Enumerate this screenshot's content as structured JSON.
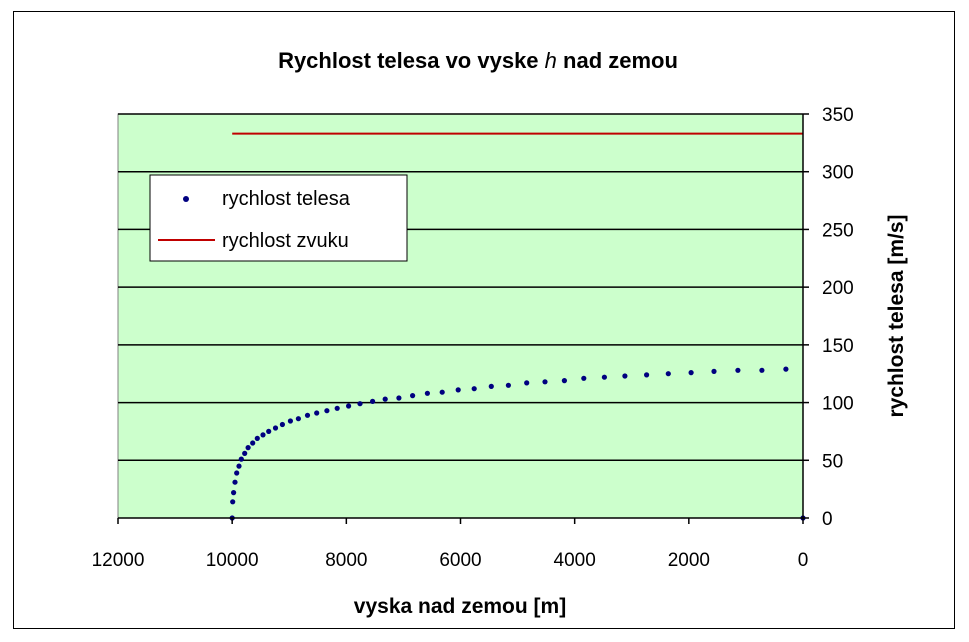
{
  "chart_data": {
    "type": "scatter",
    "title": "Rychlost telesa vo vyske h nad zemou",
    "title_parts": [
      "Rychlost telesa vo vyske ",
      "h",
      " nad zemou"
    ],
    "xlabel": "vyska nad zemou [m]",
    "ylabel": "rychlost telesa [m/s]",
    "xlim": [
      0,
      12000
    ],
    "x_reversed": true,
    "ylim": [
      0,
      350
    ],
    "x_ticks": [
      "12000",
      "10000",
      "8000",
      "6000",
      "4000",
      "2000",
      "0"
    ],
    "y_ticks": [
      "0",
      "50",
      "100",
      "150",
      "200",
      "250",
      "300",
      "350"
    ],
    "y_axis_position": "right",
    "grid": "horizontal",
    "legend_position": "top-left",
    "plot_background": "#ccffcc",
    "series": [
      {
        "name": "rychlost telesa",
        "style": "markers",
        "color": "#000080",
        "points": [
          [
            10000,
            0
          ],
          [
            9990,
            14
          ],
          [
            9975,
            22
          ],
          [
            9950,
            31
          ],
          [
            9920,
            39
          ],
          [
            9880,
            45
          ],
          [
            9840,
            51
          ],
          [
            9780,
            56
          ],
          [
            9720,
            61
          ],
          [
            9640,
            65
          ],
          [
            9560,
            69
          ],
          [
            9460,
            72
          ],
          [
            9360,
            75
          ],
          [
            9240,
            78
          ],
          [
            9120,
            81
          ],
          [
            8980,
            84
          ],
          [
            8840,
            86
          ],
          [
            8680,
            89
          ],
          [
            8520,
            91
          ],
          [
            8340,
            93
          ],
          [
            8160,
            95
          ],
          [
            7960,
            97
          ],
          [
            7760,
            99
          ],
          [
            7540,
            101
          ],
          [
            7320,
            103
          ],
          [
            7080,
            104
          ],
          [
            6840,
            106
          ],
          [
            6580,
            108
          ],
          [
            6320,
            109
          ],
          [
            6040,
            111
          ],
          [
            5760,
            112
          ],
          [
            5460,
            114
          ],
          [
            5160,
            115
          ],
          [
            4840,
            117
          ],
          [
            4520,
            118
          ],
          [
            4180,
            119
          ],
          [
            3840,
            121
          ],
          [
            3480,
            122
          ],
          [
            3120,
            123
          ],
          [
            2740,
            124
          ],
          [
            2360,
            125
          ],
          [
            1960,
            126
          ],
          [
            1560,
            127
          ],
          [
            1140,
            128
          ],
          [
            720,
            128
          ],
          [
            300,
            129
          ],
          [
            0,
            0
          ]
        ]
      },
      {
        "name": "rychlost zvuku",
        "style": "line",
        "color": "#c00000",
        "points": [
          [
            10000,
            333
          ],
          [
            0,
            333
          ]
        ]
      }
    ]
  }
}
